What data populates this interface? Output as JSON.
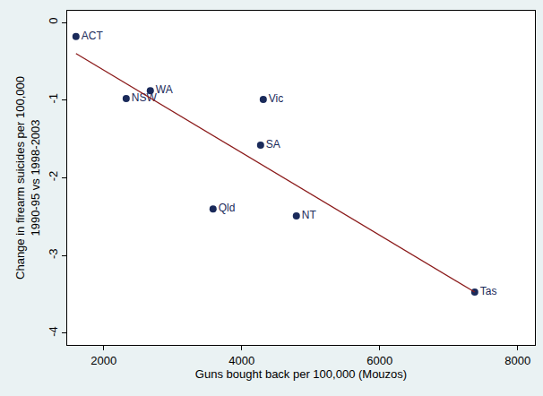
{
  "chart_data": {
    "type": "scatter",
    "x_label": "Guns bought back per 100,000 (Mouzos)",
    "y_label": "Change in firearm suicides per 100,000\n1990-95 vs 1998-2003",
    "xlim": [
      1470,
      8250
    ],
    "ylim": [
      -4.15,
      0.15
    ],
    "xticks": [
      2000,
      4000,
      6000,
      8000
    ],
    "yticks": [
      0,
      -1,
      -2,
      -3,
      -4
    ],
    "grid": false,
    "series": [
      {
        "type": "scatter",
        "marker": "circle",
        "color": "#1a2a5a",
        "labels": [
          "ACT",
          "NSW",
          "WA",
          "Vic",
          "SA",
          "Qld",
          "NT",
          "Tas"
        ],
        "x": [
          1597,
          2325,
          2675,
          4312,
          4273,
          3584,
          4792,
          7377
        ],
        "values": [
          -0.18,
          -0.98,
          -0.88,
          -0.99,
          -1.58,
          -2.4,
          -2.49,
          -3.47
        ]
      },
      {
        "type": "line",
        "line_style": "solid",
        "color": "#8b1a1a",
        "x": [
          1597,
          7377
        ],
        "values": [
          -0.4,
          -3.47
        ]
      }
    ]
  }
}
